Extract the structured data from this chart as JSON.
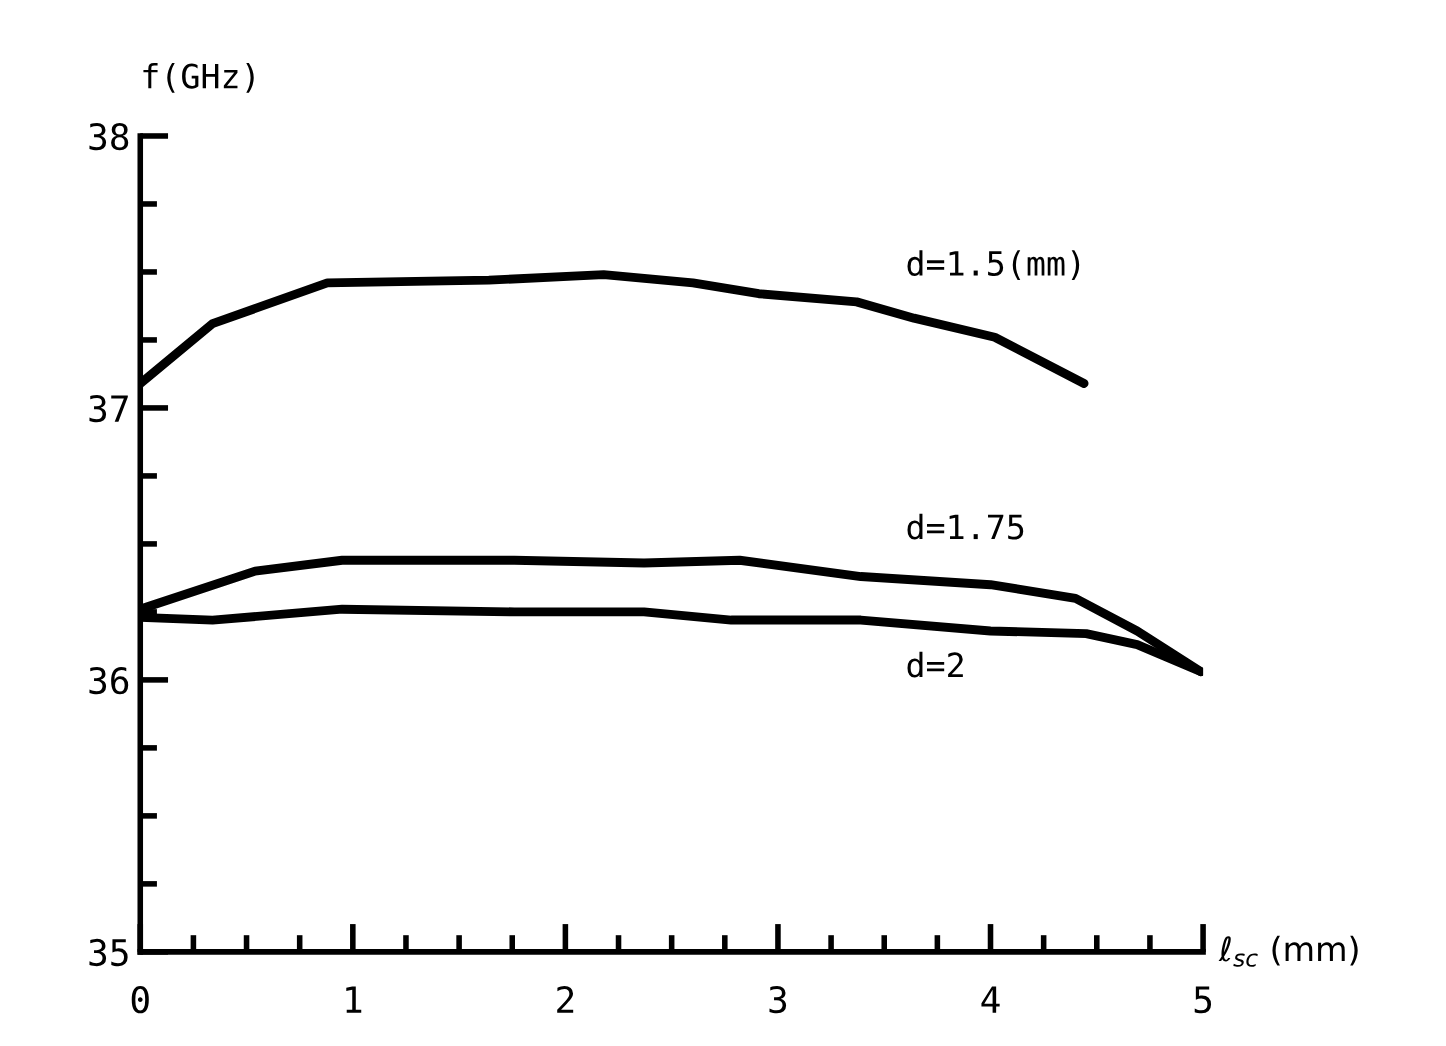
{
  "chart_data": {
    "type": "line",
    "ylabel": "f(GHz)",
    "xlabel": "ℓ$_{sc}$ (mm)",
    "xlim": [
      0,
      5
    ],
    "ylim": [
      35,
      38
    ],
    "xticks": [
      0,
      {
        "value": 0.25,
        "label": null
      },
      {
        "value": 0.5,
        "label": null
      },
      {
        "value": 0.75,
        "label": null
      },
      1,
      {
        "value": 1.25,
        "label": null
      },
      {
        "value": 1.5,
        "label": null
      },
      {
        "value": 1.75,
        "label": null
      },
      2,
      {
        "value": 2.25,
        "label": null
      },
      {
        "value": 2.5,
        "label": null
      },
      {
        "value": 2.75,
        "label": null
      },
      3,
      {
        "value": 3.25,
        "label": null
      },
      {
        "value": 3.5,
        "label": null
      },
      {
        "value": 3.75,
        "label": null
      },
      4,
      {
        "value": 4.25,
        "label": null
      },
      {
        "value": 4.5,
        "label": null
      },
      {
        "value": 4.75,
        "label": null
      },
      5
    ],
    "yticks": [
      35,
      {
        "value": 35.25,
        "label": null
      },
      {
        "value": 35.5,
        "label": null
      },
      {
        "value": 35.75,
        "label": null
      },
      36,
      {
        "value": 36.25,
        "label": null
      },
      {
        "value": 36.5,
        "label": null
      },
      {
        "value": 36.75,
        "label": null
      },
      37,
      {
        "value": 37.25,
        "label": null
      },
      {
        "value": 37.5,
        "label": null
      },
      {
        "value": 37.75,
        "label": null
      },
      38
    ],
    "grid": false,
    "legend": false,
    "marker": "none",
    "line_style": "solid",
    "series": [
      {
        "name": "d=1.5(mm)",
        "color": "#000000",
        "x": [
          0,
          0.34,
          0.88,
          1.64,
          2.18,
          2.6,
          2.91,
          3.37,
          3.64,
          4.02,
          4.44
        ],
        "values": [
          37.09,
          37.31,
          37.46,
          37.47,
          37.49,
          37.46,
          37.42,
          37.39,
          37.33,
          37.26,
          37.09
        ]
      },
      {
        "name": "d=1.75",
        "color": "#000000",
        "x": [
          0,
          0.54,
          0.95,
          1.76,
          2.37,
          2.82,
          3.39,
          4.0,
          4.4,
          4.69,
          4.99
        ],
        "values": [
          36.26,
          36.4,
          36.44,
          36.44,
          36.43,
          36.44,
          36.38,
          36.35,
          36.3,
          36.18,
          36.03
        ]
      },
      {
        "name": "d=2",
        "color": "#000000",
        "x": [
          0,
          0.34,
          0.95,
          1.76,
          2.37,
          2.78,
          3.39,
          4.0,
          4.45,
          4.69,
          4.99
        ],
        "values": [
          36.23,
          36.22,
          36.26,
          36.25,
          36.25,
          36.22,
          36.22,
          36.18,
          36.17,
          36.13,
          36.03
        ]
      }
    ]
  }
}
